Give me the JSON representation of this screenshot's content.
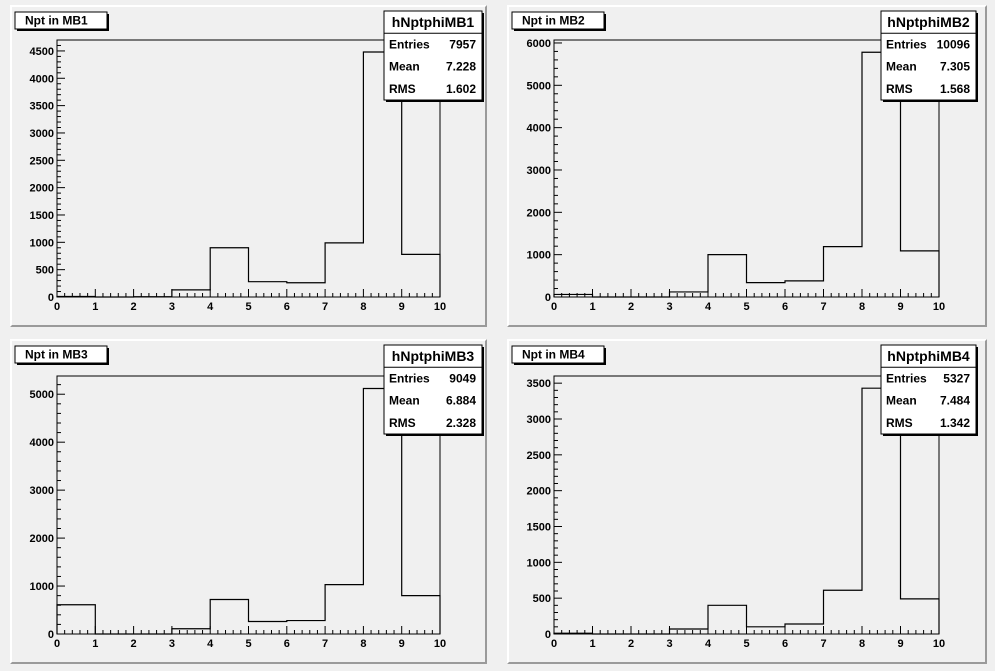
{
  "chart_data": [
    {
      "type": "bar",
      "title": "Npt in MB1",
      "stats": {
        "name": "hNptphiMB1",
        "entries": "7957",
        "mean": "7.228",
        "rms": "1.602"
      },
      "stat_labels": {
        "entries": "Entries",
        "mean": "Mean",
        "rms": "RMS"
      },
      "bin_edges": [
        0,
        1,
        2,
        3,
        4,
        5,
        6,
        7,
        8,
        9,
        10
      ],
      "values": [
        10,
        0,
        5,
        130,
        900,
        280,
        260,
        990,
        4480,
        780
      ],
      "xlim": [
        0,
        10
      ],
      "ylim": [
        0,
        4700
      ],
      "xticks": [
        0,
        1,
        2,
        3,
        4,
        5,
        6,
        7,
        8,
        9,
        10
      ],
      "yticks": [
        0,
        500,
        1000,
        1500,
        2000,
        2500,
        3000,
        3500,
        4000,
        4500
      ]
    },
    {
      "type": "bar",
      "title": "Npt in MB2",
      "stats": {
        "name": "hNptphiMB2",
        "entries": "10096",
        "mean": "7.305",
        "rms": "1.568"
      },
      "stat_labels": {
        "entries": "Entries",
        "mean": "Mean",
        "rms": "RMS"
      },
      "bin_edges": [
        0,
        1,
        2,
        3,
        4,
        5,
        6,
        7,
        8,
        9,
        10
      ],
      "values": [
        60,
        0,
        0,
        120,
        1000,
        340,
        380,
        1190,
        5780,
        1090
      ],
      "xlim": [
        0,
        10
      ],
      "ylim": [
        0,
        6070
      ],
      "xticks": [
        0,
        1,
        2,
        3,
        4,
        5,
        6,
        7,
        8,
        9,
        10
      ],
      "yticks": [
        0,
        1000,
        2000,
        3000,
        4000,
        5000,
        6000
      ]
    },
    {
      "type": "bar",
      "title": "Npt in MB3",
      "stats": {
        "name": "hNptphiMB3",
        "entries": "9049",
        "mean": "6.884",
        "rms": "2.328"
      },
      "stat_labels": {
        "entries": "Entries",
        "mean": "Mean",
        "rms": "RMS"
      },
      "bin_edges": [
        0,
        1,
        2,
        3,
        4,
        5,
        6,
        7,
        8,
        9,
        10
      ],
      "values": [
        610,
        0,
        0,
        110,
        720,
        260,
        280,
        1030,
        5120,
        800
      ],
      "xlim": [
        0,
        10
      ],
      "ylim": [
        0,
        5380
      ],
      "xticks": [
        0,
        1,
        2,
        3,
        4,
        5,
        6,
        7,
        8,
        9,
        10
      ],
      "yticks": [
        0,
        1000,
        2000,
        3000,
        4000,
        5000
      ]
    },
    {
      "type": "bar",
      "title": "Npt in MB4",
      "stats": {
        "name": "hNptphiMB4",
        "entries": "5327",
        "mean": "7.484",
        "rms": "1.342"
      },
      "stat_labels": {
        "entries": "Entries",
        "mean": "Mean",
        "rms": "RMS"
      },
      "bin_edges": [
        0,
        1,
        2,
        3,
        4,
        5,
        6,
        7,
        8,
        9,
        10
      ],
      "values": [
        10,
        0,
        0,
        70,
        400,
        100,
        140,
        610,
        3430,
        490
      ],
      "xlim": [
        0,
        10
      ],
      "ylim": [
        0,
        3600
      ],
      "xticks": [
        0,
        1,
        2,
        3,
        4,
        5,
        6,
        7,
        8,
        9,
        10
      ],
      "yticks": [
        0,
        500,
        1000,
        1500,
        2000,
        2500,
        3000,
        3500
      ]
    }
  ]
}
